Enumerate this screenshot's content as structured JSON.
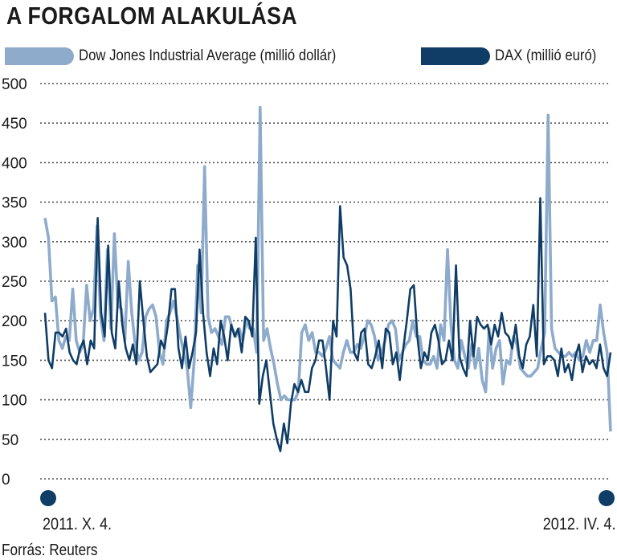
{
  "chart_data": {
    "type": "line",
    "title": "A FORGALOM ALAKULÁSA",
    "ylim": [
      0,
      500
    ],
    "yticks": [
      0,
      50,
      100,
      150,
      200,
      250,
      300,
      350,
      400,
      450,
      500
    ],
    "grid": "horizontal dotted",
    "legend_placement": "top",
    "x_start_label": "2011. X. 4.",
    "x_end_label": "2012. IV. 4.",
    "source": "Forrás: Reuters",
    "series": [
      {
        "name": "Dow Jones Industrial Average (millió dollár)",
        "color": "#8fabcc",
        "values": [
          330,
          305,
          225,
          230,
          175,
          165,
          180,
          175,
          240,
          175,
          160,
          170,
          245,
          200,
          215,
          320,
          205,
          175,
          290,
          190,
          310,
          220,
          215,
          175,
          275,
          210,
          170,
          150,
          160,
          205,
          215,
          220,
          205,
          160,
          145,
          200,
          210,
          225,
          205,
          180,
          160,
          140,
          90,
          150,
          270,
          210,
          395,
          205,
          185,
          190,
          180,
          170,
          205,
          205,
          190,
          180,
          190,
          175,
          200,
          190,
          190,
          160,
          470,
          175,
          190,
          165,
          145,
          120,
          100,
          105,
          100,
          100,
          100,
          110,
          185,
          195,
          175,
          185,
          160,
          160,
          155,
          165,
          180,
          150,
          145,
          140,
          160,
          175,
          160,
          160,
          170,
          165,
          180,
          200,
          195,
          180,
          150,
          160,
          175,
          195,
          200,
          190,
          150,
          160,
          170,
          175,
          200,
          180,
          180,
          150,
          145,
          145,
          155,
          140,
          195,
          175,
          290,
          195,
          150,
          140,
          175,
          155,
          140,
          170,
          140,
          165,
          125,
          110,
          190,
          140,
          165,
          175,
          120,
          150,
          145,
          180,
          170,
          140,
          135,
          130,
          130,
          135,
          140,
          165,
          185,
          460,
          190,
          165,
          160,
          155,
          155,
          160,
          155,
          160,
          150,
          155,
          175,
          160,
          175,
          175,
          220,
          185,
          160,
          60
        ]
      },
      {
        "name": "DAX (millió euró)",
        "color": "#0f3d66",
        "values": [
          210,
          150,
          140,
          185,
          185,
          180,
          190,
          160,
          150,
          145,
          165,
          175,
          145,
          175,
          165,
          330,
          210,
          180,
          295,
          185,
          165,
          250,
          195,
          165,
          150,
          170,
          145,
          250,
          200,
          155,
          135,
          140,
          145,
          175,
          165,
          195,
          240,
          240,
          165,
          140,
          180,
          140,
          160,
          185,
          290,
          210,
          160,
          130,
          165,
          145,
          200,
          180,
          150,
          195,
          180,
          190,
          160,
          205,
          200,
          180,
          305,
          95,
          130,
          150,
          110,
          70,
          50,
          35,
          70,
          45,
          95,
          120,
          110,
          125,
          110,
          110,
          140,
          150,
          175,
          175,
          140,
          100,
          200,
          180,
          345,
          280,
          270,
          240,
          160,
          150,
          185,
          190,
          145,
          140,
          155,
          175,
          140,
          190,
          185,
          145,
          160,
          125,
          165,
          200,
          240,
          245,
          180,
          140,
          160,
          150,
          185,
          195,
          175,
          145,
          150,
          175,
          150,
          270,
          155,
          140,
          130,
          200,
          155,
          205,
          195,
          190,
          195,
          170,
          195,
          180,
          210,
          185,
          180,
          165,
          195,
          155,
          140,
          170,
          180,
          220,
          155,
          355,
          145,
          155,
          155,
          150,
          130,
          165,
          135,
          145,
          125,
          155,
          170,
          135,
          155,
          145,
          150,
          140,
          170,
          140,
          130,
          160
        ]
      }
    ]
  }
}
